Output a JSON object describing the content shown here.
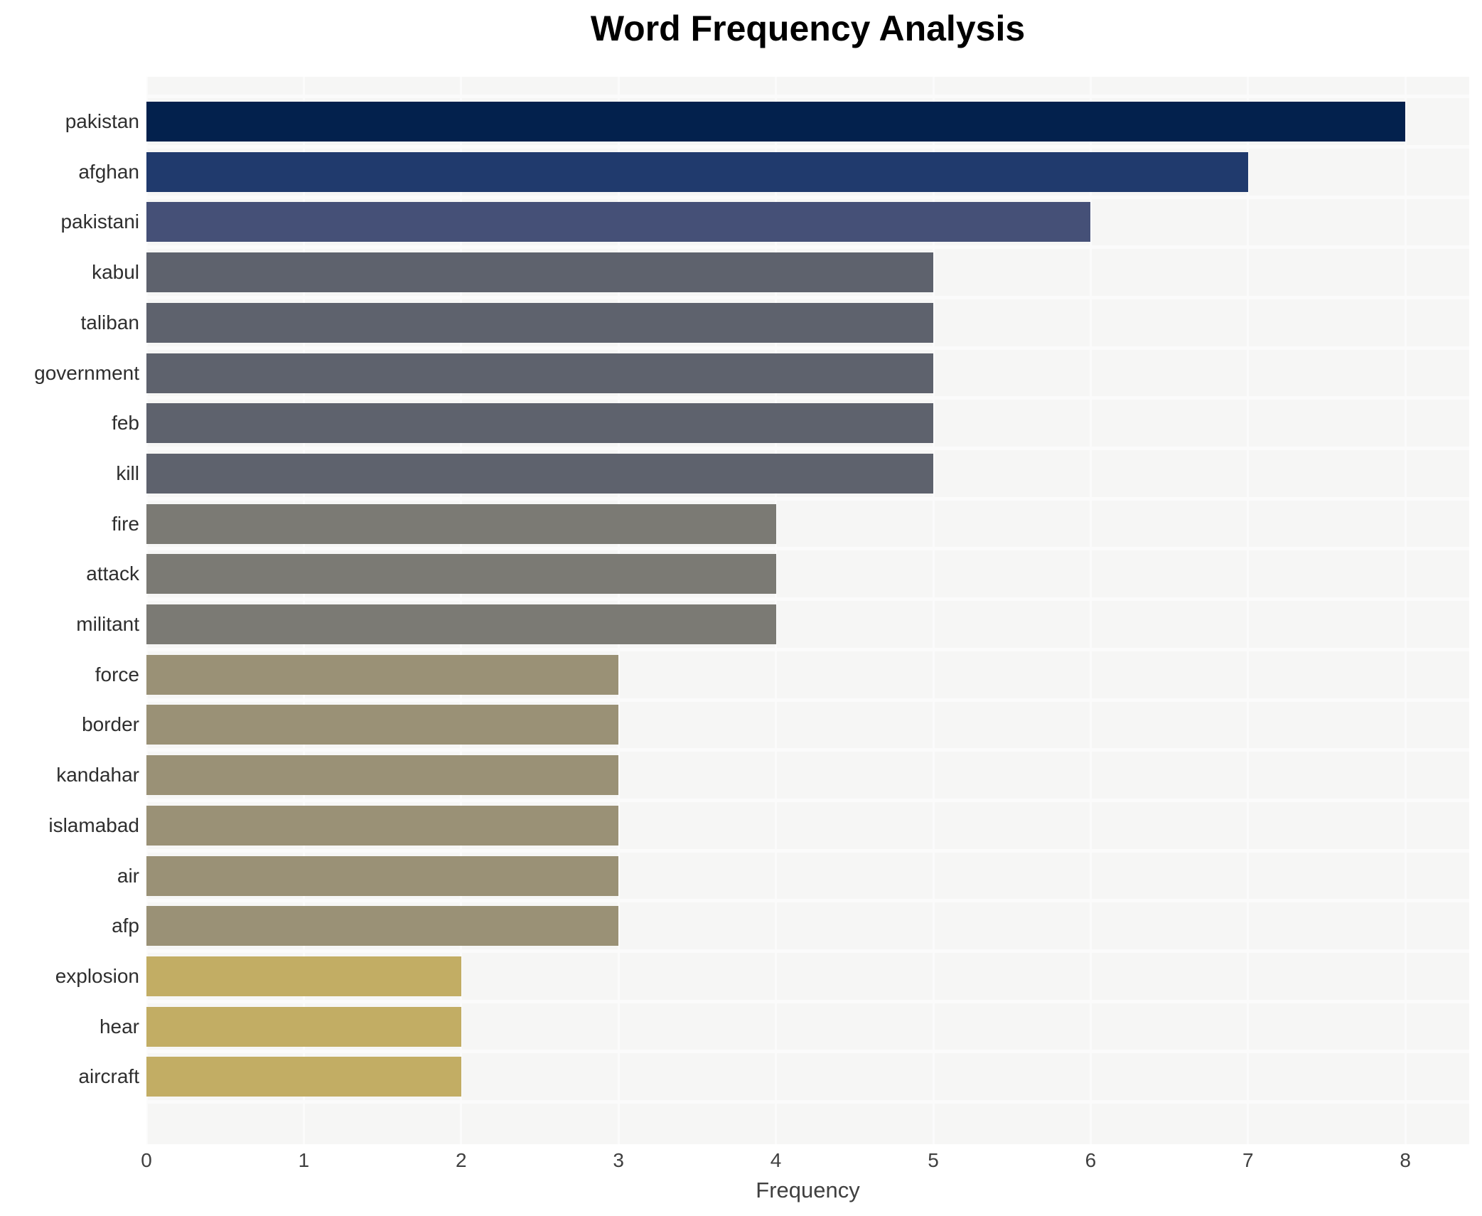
{
  "title": "Word Frequency Analysis",
  "xlabel": "Frequency",
  "chart_data": {
    "type": "bar",
    "orientation": "horizontal",
    "title": "Word Frequency Analysis",
    "xlabel": "Frequency",
    "ylabel": "",
    "categories": [
      "pakistan",
      "afghan",
      "pakistani",
      "kabul",
      "taliban",
      "government",
      "feb",
      "kill",
      "fire",
      "attack",
      "militant",
      "force",
      "border",
      "kandahar",
      "islamabad",
      "air",
      "afp",
      "explosion",
      "hear",
      "aircraft"
    ],
    "values": [
      8,
      7,
      6,
      5,
      5,
      5,
      5,
      5,
      4,
      4,
      4,
      3,
      3,
      3,
      3,
      3,
      3,
      2,
      2,
      2
    ],
    "bar_colors": [
      "#03214d",
      "#203a6d",
      "#455077",
      "#5e626d",
      "#5e626d",
      "#5e626d",
      "#5e626d",
      "#5e626d",
      "#7b7a74",
      "#7b7a74",
      "#7b7a74",
      "#9a9176",
      "#9a9176",
      "#9a9176",
      "#9a9176",
      "#9a9176",
      "#9a9176",
      "#c2ad64",
      "#c2ad64",
      "#c2ad64"
    ],
    "x_ticks": [
      0,
      1,
      2,
      3,
      4,
      5,
      6,
      7,
      8
    ],
    "xlim": [
      0,
      8.4
    ],
    "grid": true,
    "legend": false,
    "panel_bg": "#f6f6f5",
    "grid_color": "#fbfbfb"
  }
}
